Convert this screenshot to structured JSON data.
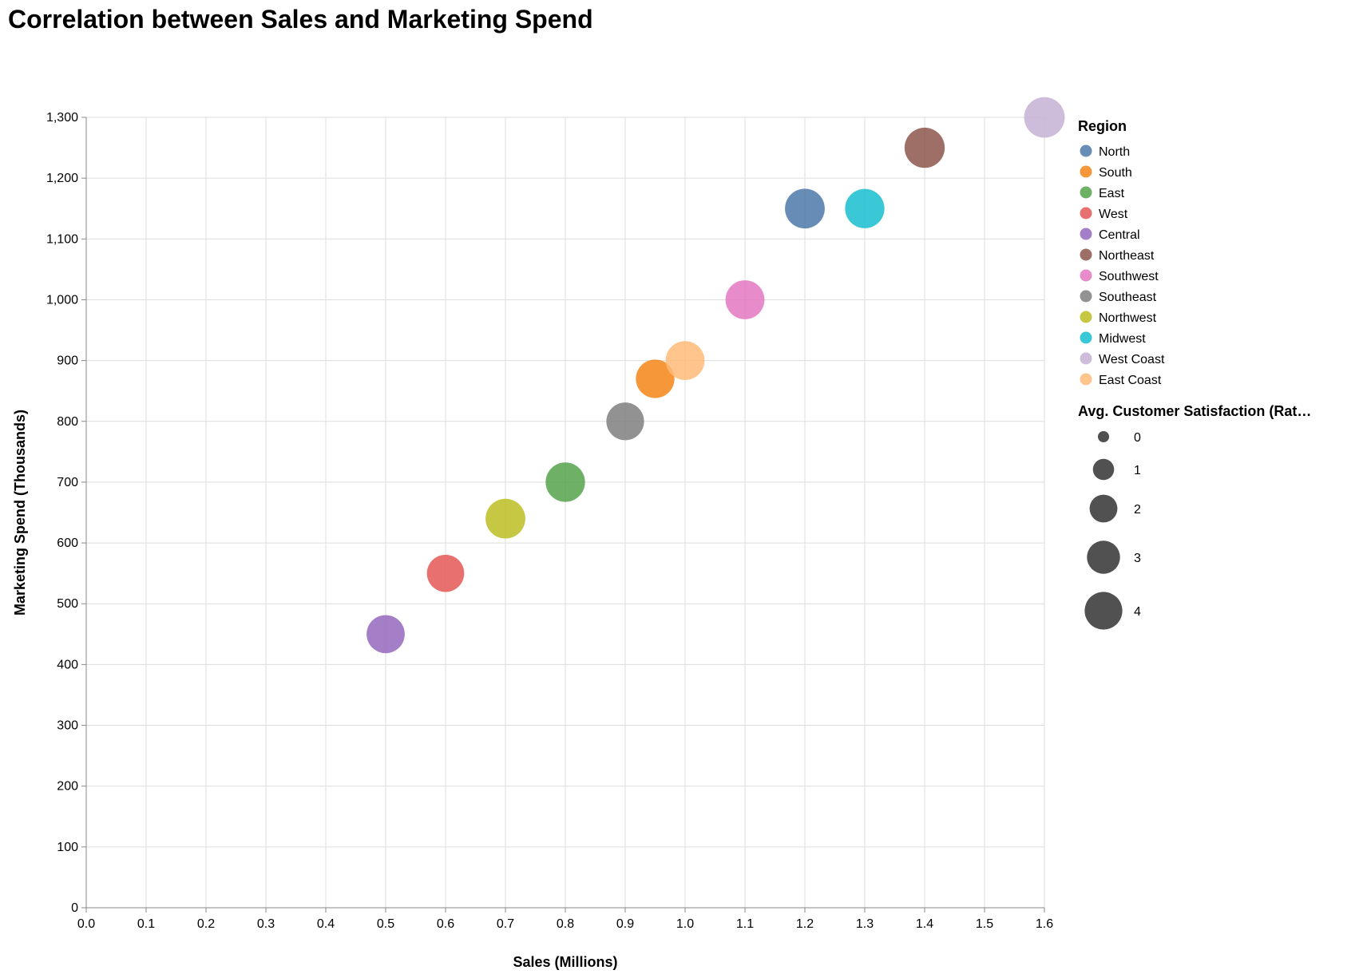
{
  "chart_data": {
    "type": "scatter",
    "title": "Correlation between Sales and Marketing Spend",
    "xlabel": "Sales (Millions)",
    "ylabel": "Marketing Spend (Thousands)",
    "xlim": [
      0,
      1.6
    ],
    "ylim": [
      0,
      1300
    ],
    "x_ticks": [
      "0.0",
      "0.1",
      "0.2",
      "0.3",
      "0.4",
      "0.5",
      "0.6",
      "0.7",
      "0.8",
      "0.9",
      "1.0",
      "1.1",
      "1.2",
      "1.3",
      "1.4",
      "1.5",
      "1.6"
    ],
    "y_ticks": [
      "0",
      "100",
      "200",
      "300",
      "400",
      "500",
      "600",
      "700",
      "800",
      "900",
      "1,000",
      "1,100",
      "1,200",
      "1,300"
    ],
    "grid": true,
    "legend_placement": "right",
    "color_legend_title": "Region",
    "size_legend_title": "Avg. Customer Satisfaction (Rat…",
    "size_legend_values": [
      0,
      1,
      2,
      3,
      4
    ],
    "size_legend_labels": [
      "0",
      "1",
      "2",
      "3",
      "4"
    ],
    "points": [
      {
        "region": "North",
        "x": 1.2,
        "y": 1150,
        "satisfaction": 4.5,
        "color": "#4c78a8"
      },
      {
        "region": "South",
        "x": 0.95,
        "y": 870,
        "satisfaction": 4.2,
        "color": "#f58518"
      },
      {
        "region": "East",
        "x": 0.8,
        "y": 700,
        "satisfaction": 4.4,
        "color": "#54a24b"
      },
      {
        "region": "West",
        "x": 0.6,
        "y": 550,
        "satisfaction": 3.9,
        "color": "#e45756"
      },
      {
        "region": "Central",
        "x": 0.5,
        "y": 450,
        "satisfaction": 4.1,
        "color": "#9467bd"
      },
      {
        "region": "Northeast",
        "x": 1.4,
        "y": 1250,
        "satisfaction": 4.6,
        "color": "#8c564b"
      },
      {
        "region": "Southwest",
        "x": 1.1,
        "y": 1000,
        "satisfaction": 4.3,
        "color": "#e377c2"
      },
      {
        "region": "Southeast",
        "x": 0.9,
        "y": 800,
        "satisfaction": 4.0,
        "color": "#7f7f7f"
      },
      {
        "region": "Northwest",
        "x": 0.7,
        "y": 640,
        "satisfaction": 4.5,
        "color": "#bcbd22"
      },
      {
        "region": "Midwest",
        "x": 1.3,
        "y": 1150,
        "satisfaction": 4.4,
        "color": "#17becf"
      },
      {
        "region": "West Coast",
        "x": 1.6,
        "y": 1300,
        "satisfaction": 4.7,
        "color": "#c5b0d5"
      },
      {
        "region": "East Coast",
        "x": 1.0,
        "y": 900,
        "satisfaction": 4.3,
        "color": "#ffbb78"
      }
    ]
  }
}
